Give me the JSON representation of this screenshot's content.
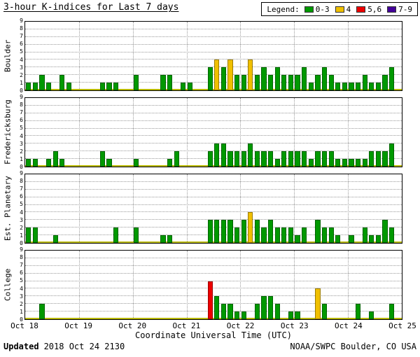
{
  "title": "3-hour K-indices for Last 7 days",
  "legend": {
    "label": "Legend:",
    "items": [
      {
        "label": "0-3",
        "color": "#009900"
      },
      {
        "label": "4",
        "color": "#f0c000"
      },
      {
        "label": "5,6",
        "color": "#ee0000"
      },
      {
        "label": "7-9",
        "color": "#440099"
      }
    ]
  },
  "x_axis": {
    "label": "Coordinate Universal Time (UTC)",
    "ticks": [
      "Oct 18",
      "Oct 19",
      "Oct 20",
      "Oct 21",
      "Oct 22",
      "Oct 23",
      "Oct 24",
      "Oct 25"
    ]
  },
  "y_axis": {
    "ticks": [
      0,
      1,
      2,
      3,
      4,
      5,
      6,
      7,
      8,
      9
    ],
    "max": 9
  },
  "footer": {
    "updated_label": "Updated",
    "updated_value": "2018 Oct 24 2130",
    "source": "NOAA/SWPC Boulder, CO USA"
  },
  "color_thresholds": {
    "green_max": 3,
    "yellow_max": 4,
    "red_max": 6
  },
  "chart_data": [
    {
      "type": "bar",
      "station": "Boulder",
      "hours_per_bar": 3,
      "start": "Oct 18",
      "ylim": [
        0,
        9
      ],
      "values": [
        1,
        1,
        2,
        1,
        0,
        2,
        1,
        0,
        0,
        0,
        0,
        1,
        1,
        1,
        0,
        0,
        2,
        0,
        0,
        0,
        2,
        2,
        0,
        1,
        1,
        0,
        0,
        3,
        4,
        3,
        4,
        2,
        2,
        4,
        2,
        3,
        2,
        3,
        2,
        2,
        2,
        3,
        1,
        2,
        3,
        2,
        1,
        1,
        1,
        1,
        2,
        1,
        1,
        2,
        3
      ]
    },
    {
      "type": "bar",
      "station": "Fredericksburg",
      "hours_per_bar": 3,
      "start": "Oct 18",
      "ylim": [
        0,
        9
      ],
      "values": [
        1,
        1,
        0,
        1,
        2,
        1,
        0,
        0,
        0,
        0,
        0,
        2,
        1,
        0,
        0,
        0,
        1,
        0,
        0,
        0,
        0,
        1,
        2,
        0,
        0,
        0,
        0,
        2,
        3,
        3,
        2,
        2,
        2,
        3,
        2,
        2,
        2,
        1,
        2,
        2,
        2,
        2,
        1,
        2,
        2,
        2,
        1,
        1,
        1,
        1,
        1,
        2,
        2,
        2,
        3
      ]
    },
    {
      "type": "bar",
      "station": "Est. Planetary",
      "hours_per_bar": 3,
      "start": "Oct 18",
      "ylim": [
        0,
        9
      ],
      "values": [
        2,
        2,
        0,
        0,
        1,
        0,
        0,
        0,
        0,
        0,
        0,
        0,
        0,
        2,
        0,
        0,
        2,
        0,
        0,
        0,
        1,
        1,
        0,
        0,
        0,
        0,
        0,
        3,
        3,
        3,
        3,
        2,
        3,
        4,
        3,
        2,
        3,
        2,
        2,
        2,
        1,
        2,
        0,
        3,
        2,
        2,
        1,
        0,
        1,
        0,
        2,
        1,
        1,
        3,
        2
      ]
    },
    {
      "type": "bar",
      "station": "College",
      "hours_per_bar": 3,
      "start": "Oct 18",
      "ylim": [
        0,
        9
      ],
      "values": [
        0,
        0,
        2,
        0,
        0,
        0,
        0,
        0,
        0,
        0,
        0,
        0,
        0,
        0,
        0,
        0,
        0,
        0,
        0,
        0,
        0,
        0,
        0,
        0,
        0,
        0,
        0,
        5,
        3,
        2,
        2,
        1,
        1,
        0,
        2,
        3,
        3,
        2,
        0,
        1,
        1,
        0,
        0,
        4,
        2,
        0,
        0,
        0,
        0,
        2,
        0,
        1,
        0,
        0,
        2
      ]
    }
  ]
}
